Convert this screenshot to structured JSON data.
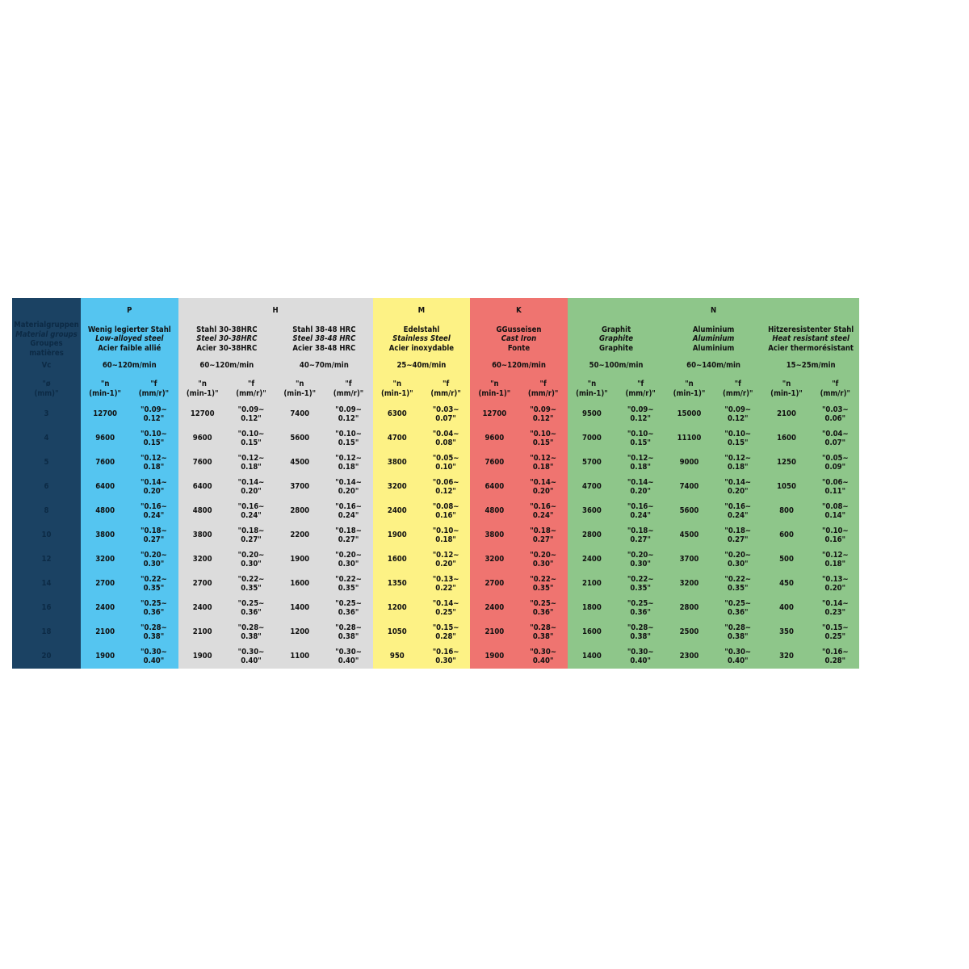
{
  "colors": {
    "first": "#1b4263",
    "P": "#55c5f0",
    "H": "#dcdcdc",
    "M": "#fdf285",
    "K": "#ef7470",
    "N": "#8ec68a"
  },
  "first_column": {
    "labels": [
      "Materialgruppen",
      "Material groups",
      "Groupes matières"
    ],
    "vc_label": "Vc",
    "diameter_label": [
      "\"ø",
      "(mm)\""
    ],
    "diameters": [
      "3",
      "4",
      "5",
      "6",
      "8",
      "10",
      "12",
      "14",
      "16",
      "18",
      "20"
    ]
  },
  "groups": [
    {
      "letter": "P",
      "color_key": "P",
      "span": 1
    },
    {
      "letter": "H",
      "color_key": "H",
      "span": 2
    },
    {
      "letter": "M",
      "color_key": "M",
      "span": 1
    },
    {
      "letter": "K",
      "color_key": "K",
      "span": 1
    },
    {
      "letter": "N",
      "color_key": "N",
      "span": 3
    }
  ],
  "n_header": [
    "\"n",
    "(min-1)\""
  ],
  "f_header": [
    "\"f",
    "(mm/r)\""
  ],
  "materials": [
    {
      "color_key": "P",
      "names": [
        "Wenig legierter Stahl",
        "Low-alloyed steel",
        "Acier faible allié"
      ],
      "vc": "60~120m/min",
      "n": [
        "12700",
        "9600",
        "7600",
        "6400",
        "4800",
        "3800",
        "3200",
        "2700",
        "2400",
        "2100",
        "1900"
      ],
      "f_set": "std"
    },
    {
      "color_key": "H",
      "names": [
        "Stahl 30-38HRC",
        "Steel 30-38HRC",
        "Acier 30-38HRC"
      ],
      "vc": "60~120m/min",
      "n": [
        "12700",
        "9600",
        "7600",
        "6400",
        "4800",
        "3800",
        "3200",
        "2700",
        "2400",
        "2100",
        "1900"
      ],
      "f_set": "std"
    },
    {
      "color_key": "H",
      "names": [
        "Stahl 38-48 HRC",
        "Steel 38-48 HRC",
        "Acier 38-48 HRC"
      ],
      "vc": "40~70m/min",
      "n": [
        "7400",
        "5600",
        "4500",
        "3700",
        "2800",
        "2200",
        "1900",
        "1600",
        "1400",
        "1200",
        "1100"
      ],
      "f_set": "std"
    },
    {
      "color_key": "M",
      "names": [
        "Edelstahl",
        "Stainless Steel",
        "Acier inoxydable"
      ],
      "vc": "25~40m/min",
      "n": [
        "6300",
        "4700",
        "3800",
        "3200",
        "2400",
        "1900",
        "1600",
        "1350",
        "1200",
        "1050",
        "950"
      ],
      "f_set": "m"
    },
    {
      "color_key": "K",
      "names": [
        "GGusseisen",
        "Cast Iron",
        "Fonte"
      ],
      "vc": "60~120m/min",
      "n": [
        "12700",
        "9600",
        "7600",
        "6400",
        "4800",
        "3800",
        "3200",
        "2700",
        "2400",
        "2100",
        "1900"
      ],
      "f_set": "std"
    },
    {
      "color_key": "N",
      "names": [
        "Graphit",
        "Graphite",
        "Graphite"
      ],
      "vc": "50~100m/min",
      "n": [
        "9500",
        "7000",
        "5700",
        "4700",
        "3600",
        "2800",
        "2400",
        "2100",
        "1800",
        "1600",
        "1400"
      ],
      "f_set": "std"
    },
    {
      "color_key": "N",
      "names": [
        "Aluminium",
        "Aluminium",
        "Aluminium"
      ],
      "vc": "60~140m/min",
      "n": [
        "15000",
        "11100",
        "9000",
        "7400",
        "5600",
        "4500",
        "3700",
        "3200",
        "2800",
        "2500",
        "2300"
      ],
      "f_set": "std"
    },
    {
      "color_key": "N",
      "names": [
        "Hitzeresistenter Stahl",
        "Heat resistant steel",
        "Acier thermorésistant"
      ],
      "vc": "15~25m/min",
      "n": [
        "2100",
        "1600",
        "1250",
        "1050",
        "800",
        "600",
        "500",
        "450",
        "400",
        "350",
        "320"
      ],
      "f_set": "hr"
    }
  ],
  "f_values": {
    "std": [
      [
        "\"0.09~",
        "0.12\""
      ],
      [
        "\"0.10~",
        "0.15\""
      ],
      [
        "\"0.12~",
        "0.18\""
      ],
      [
        "\"0.14~",
        "0.20\""
      ],
      [
        "\"0.16~",
        "0.24\""
      ],
      [
        "\"0.18~",
        "0.27\""
      ],
      [
        "\"0.20~",
        "0.30\""
      ],
      [
        "\"0.22~",
        "0.35\""
      ],
      [
        "\"0.25~",
        "0.36\""
      ],
      [
        "\"0.28~",
        "0.38\""
      ],
      [
        "\"0.30~",
        "0.40\""
      ]
    ],
    "m": [
      [
        "\"0.03~",
        "0.07\""
      ],
      [
        "\"0.04~",
        "0.08\""
      ],
      [
        "\"0.05~",
        "0.10\""
      ],
      [
        "\"0.06~",
        "0.12\""
      ],
      [
        "\"0.08~",
        "0.16\""
      ],
      [
        "\"0.10~",
        "0.18\""
      ],
      [
        "\"0.12~",
        "0.20\""
      ],
      [
        "\"0.13~",
        "0.22\""
      ],
      [
        "\"0.14~",
        "0.25\""
      ],
      [
        "\"0.15~",
        "0.28\""
      ],
      [
        "\"0.16~",
        "0.30\""
      ]
    ],
    "hr": [
      [
        "\"0.03~",
        "0.06\""
      ],
      [
        "\"0.04~",
        "0.07\""
      ],
      [
        "\"0.05~",
        "0.09\""
      ],
      [
        "\"0.06~",
        "0.11\""
      ],
      [
        "\"0.08~",
        "0.14\""
      ],
      [
        "\"0.10~",
        "0.16\""
      ],
      [
        "\"0.12~",
        "0.18\""
      ],
      [
        "\"0.13~",
        "0.20\""
      ],
      [
        "\"0.14~",
        "0.23\""
      ],
      [
        "\"0.15~",
        "0.25\""
      ],
      [
        "\"0.16~",
        "0.28\""
      ]
    ]
  }
}
